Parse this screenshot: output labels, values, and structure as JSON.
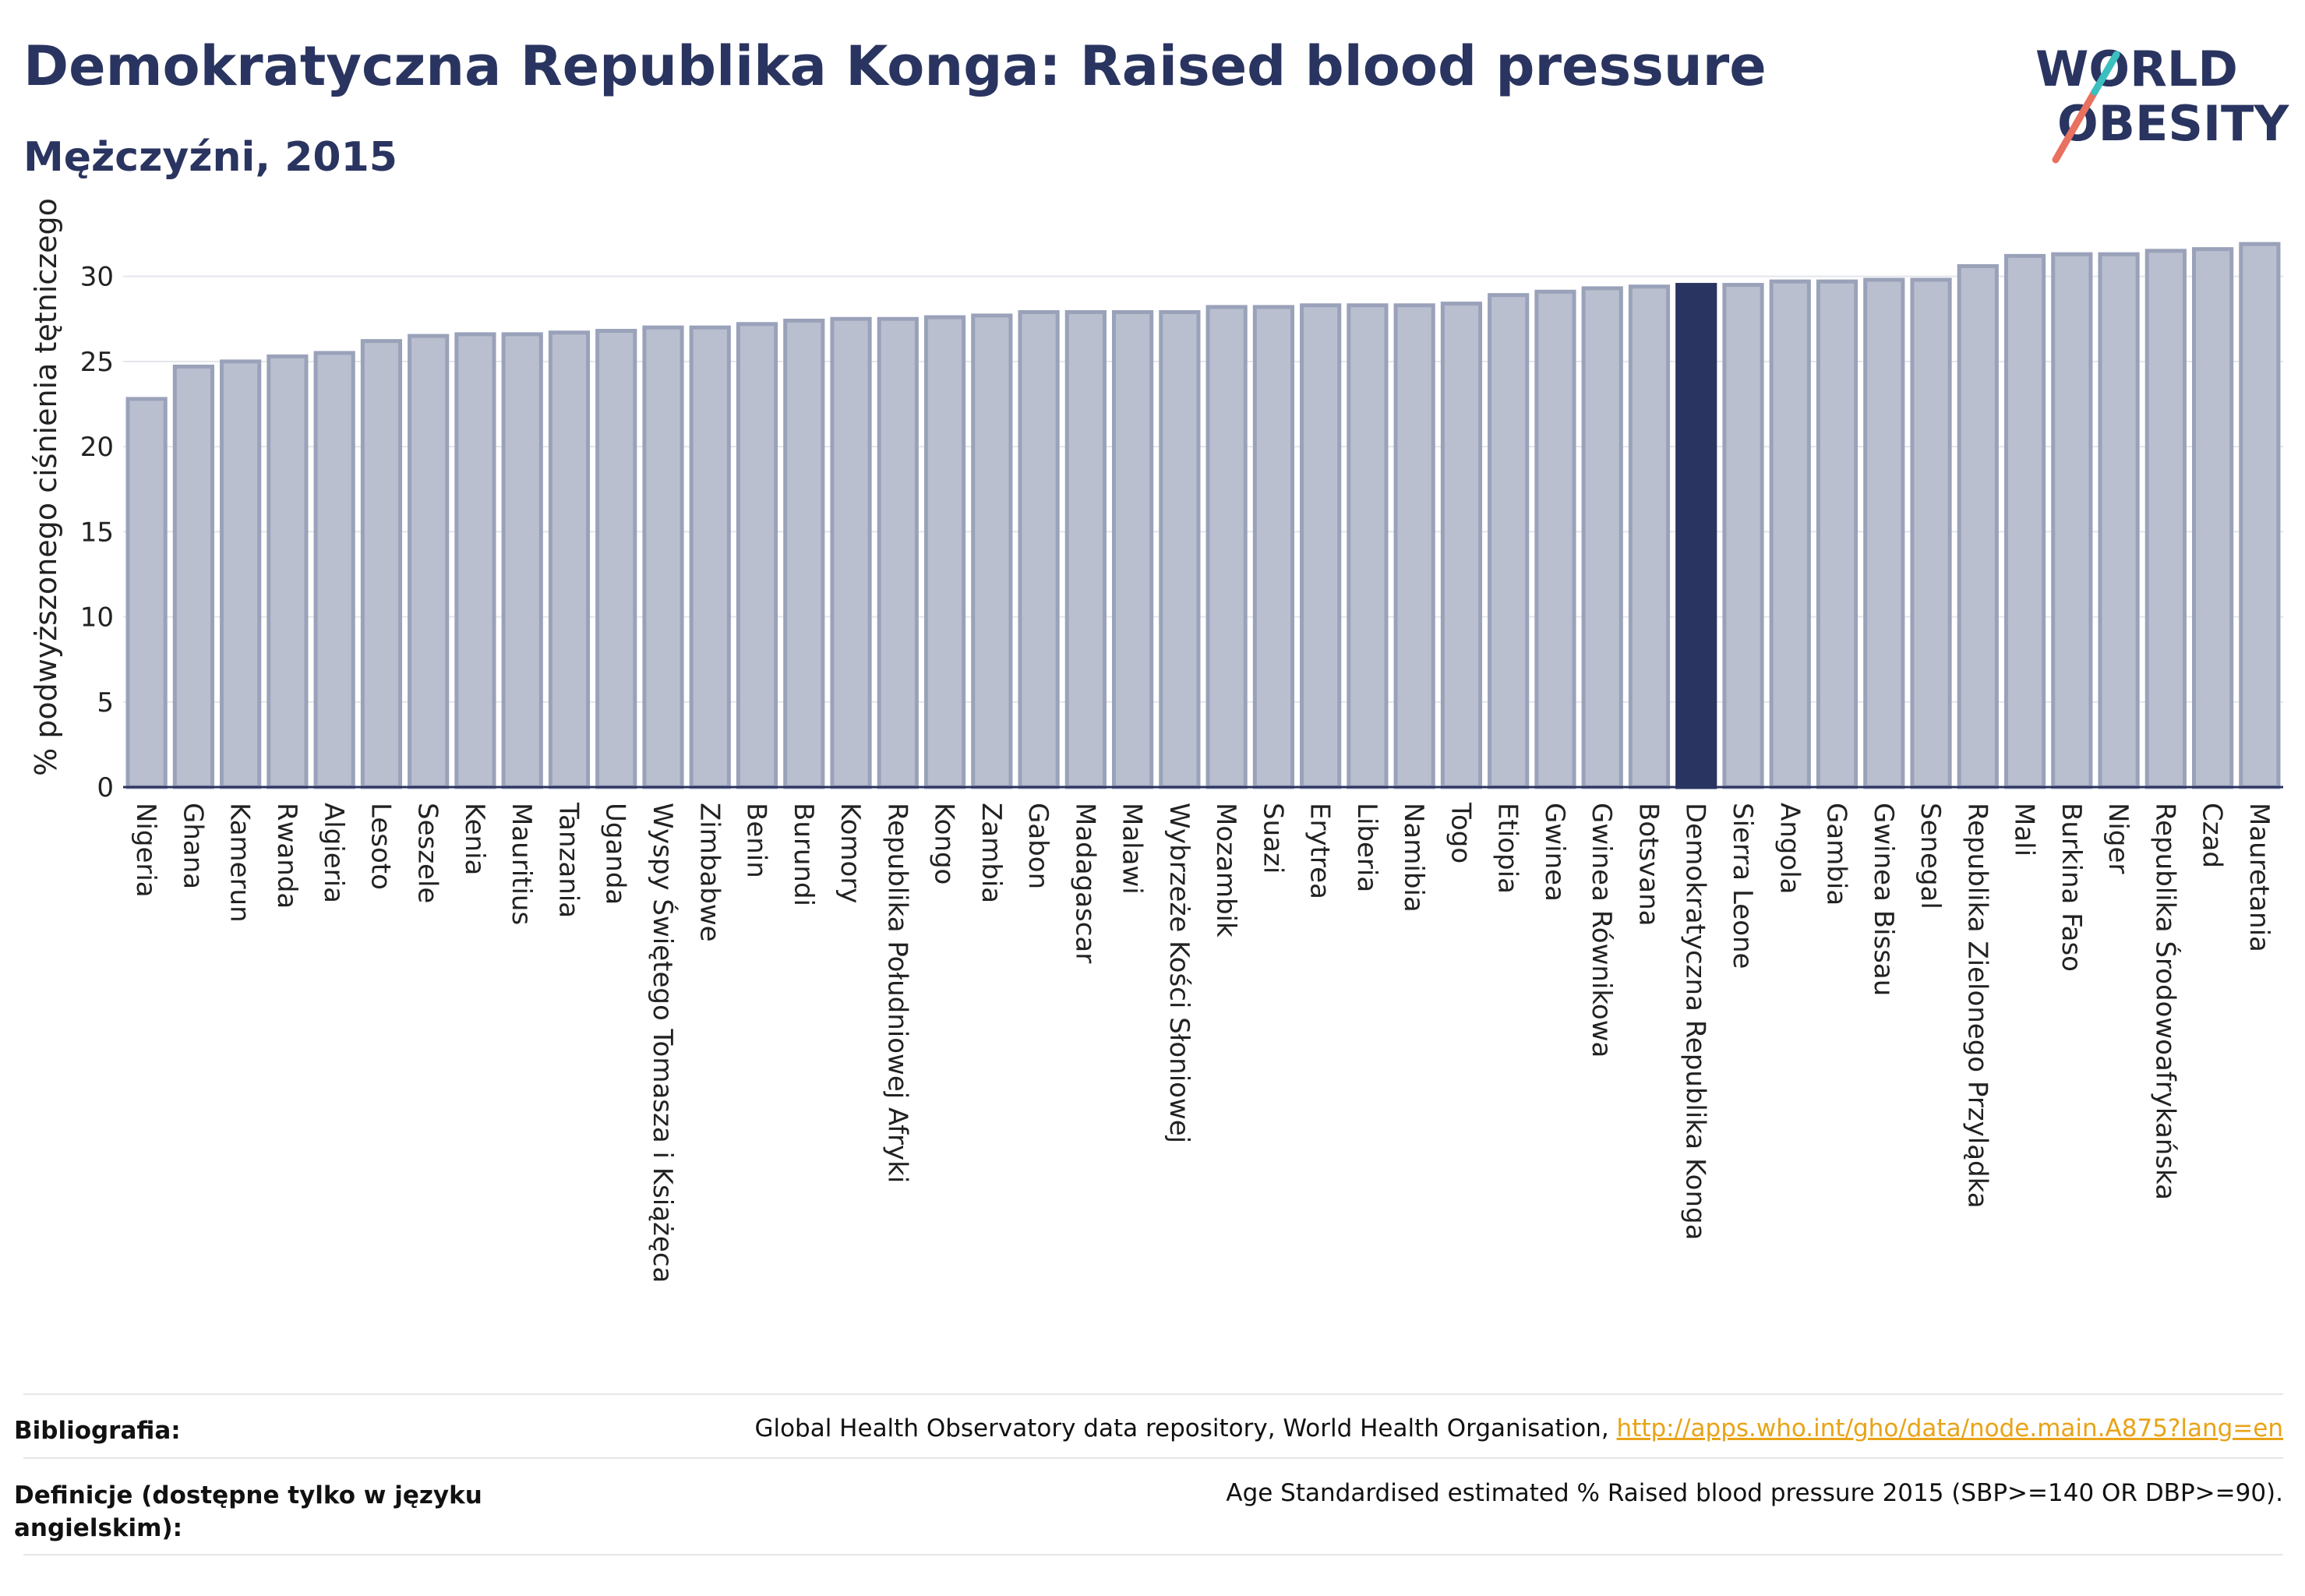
{
  "header": {
    "title": "Demokratyczna Republika Konga: Raised blood pressure",
    "subtitle": "Mężczyźni, 2015"
  },
  "logo": {
    "line1": "WORLD",
    "line2": "OBESITY"
  },
  "chart_data": {
    "type": "bar",
    "ylabel": "% podwyższonego ciśnienia tętniczego",
    "ylim": [
      0,
      32.5
    ],
    "yticks": [
      0,
      5,
      10,
      15,
      20,
      25,
      30
    ],
    "grid": true,
    "highlight": "Demokratyczna Republika Konga",
    "colors": {
      "bar": "#b9bfcf",
      "bar_edge": "#9aa2ba",
      "highlight": "#2a3460",
      "axis": "#2a3460"
    },
    "categories": [
      "Nigeria",
      "Ghana",
      "Kamerun",
      "Rwanda",
      "Algieria",
      "Lesoto",
      "Seszele",
      "Kenia",
      "Mauritius",
      "Tanzania",
      "Uganda",
      "Wyspy Świętego Tomasza i Książęca",
      "Zimbabwe",
      "Benin",
      "Burundi",
      "Komory",
      "Republika Południowej Afryki",
      "Kongo",
      "Zambia",
      "Gabon",
      "Madagascar",
      "Malawi",
      "Wybrzeże Kości Słoniowej",
      "Mozambik",
      "Suazi",
      "Erytrea",
      "Liberia",
      "Namibia",
      "Togo",
      "Etiopia",
      "Gwinea",
      "Gwinea Równikowa",
      "Botsvana",
      "Demokratyczna Republika Konga",
      "Sierra Leone",
      "Angola",
      "Gambia",
      "Gwinea Bissau",
      "Senegal",
      "Republika Zielonego Przylądka",
      "Mali",
      "Burkina Faso",
      "Niger",
      "Republika Środowoafrykańska",
      "Czad",
      "Mauretania"
    ],
    "values": [
      22.8,
      24.7,
      25.0,
      25.3,
      25.5,
      26.2,
      26.5,
      26.6,
      26.6,
      26.7,
      26.8,
      27.0,
      27.0,
      27.2,
      27.4,
      27.5,
      27.5,
      27.6,
      27.7,
      27.9,
      27.9,
      27.9,
      27.9,
      28.2,
      28.2,
      28.3,
      28.3,
      28.3,
      28.4,
      28.9,
      29.1,
      29.3,
      29.4,
      29.5,
      29.5,
      29.7,
      29.7,
      29.8,
      29.8,
      30.6,
      31.2,
      31.3,
      31.3,
      31.5,
      31.6,
      31.9
    ]
  },
  "footer": {
    "bibliography_label": "Bibliografia:",
    "bibliography_text": "Global Health Observatory data repository, World Health Organisation, ",
    "bibliography_link": "http://apps.who.int/gho/data/node.main.A875?lang=en",
    "definitions_label": "Definicje (dostępne tylko w języku angielskim):",
    "definitions_text": "Age Standardised estimated % Raised blood pressure 2015 (SBP>=140 OR DBP>=90)."
  }
}
